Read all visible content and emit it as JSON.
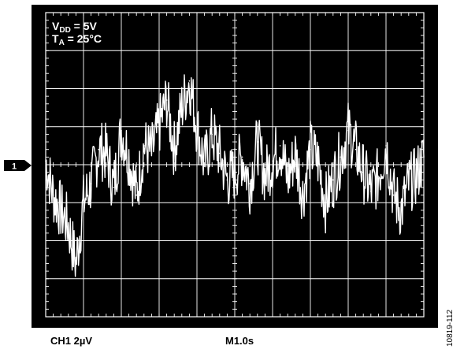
{
  "annotations": {
    "supply": "V",
    "supply_sub": "DD",
    "supply_value": " = 5V",
    "temp": "T",
    "temp_sub": "A",
    "temp_value": " = 25°C"
  },
  "channel_marker": "1",
  "footer": {
    "channel_scale": "CH1  2µV",
    "timebase": "M1.0s"
  },
  "figure_id": "10819-112",
  "colors": {
    "background": "#000000",
    "grid": "#ffffff",
    "trace": "#ffffff"
  },
  "chart_data": {
    "type": "line",
    "title": "",
    "xlabel": "",
    "ylabel": "",
    "grid": true,
    "x_divisions": 10,
    "y_divisions": 8,
    "xlim": [
      0,
      10
    ],
    "ylim": [
      -4,
      4
    ],
    "x_units": "s (1.0 s/div)",
    "y_units": "µV (2 µV/div)",
    "x": [
      0.0,
      0.2,
      0.4,
      0.6,
      0.8,
      1.0,
      1.2,
      1.4,
      1.6,
      1.8,
      2.0,
      2.2,
      2.4,
      2.6,
      2.8,
      3.0,
      3.2,
      3.4,
      3.6,
      3.8,
      4.0,
      4.2,
      4.4,
      4.6,
      4.8,
      5.0,
      5.2,
      5.4,
      5.6,
      5.8,
      6.0,
      6.2,
      6.4,
      6.6,
      6.8,
      7.0,
      7.2,
      7.4,
      7.6,
      7.8,
      8.0,
      8.2,
      8.4,
      8.6,
      8.8,
      9.0,
      9.2,
      9.4,
      9.6,
      9.8,
      10.0
    ],
    "y": [
      0.1,
      -0.8,
      -1.2,
      -1.6,
      -2.6,
      -1.0,
      -0.5,
      0.4,
      0.3,
      -0.6,
      0.9,
      0.2,
      -0.8,
      0.5,
      0.3,
      1.0,
      1.7,
      0.4,
      1.5,
      2.2,
      1.0,
      0.0,
      0.8,
      0.3,
      -0.4,
      -0.2,
      0.2,
      -0.5,
      0.6,
      -0.3,
      0.1,
      0.5,
      -0.4,
      0.3,
      -0.8,
      0.4,
      0.1,
      -1.0,
      -0.4,
      0.2,
      0.9,
      0.4,
      -0.2,
      -0.7,
      -0.3,
      0.5,
      -0.8,
      -1.2,
      -0.5,
      -0.3,
      0.2
    ]
  }
}
